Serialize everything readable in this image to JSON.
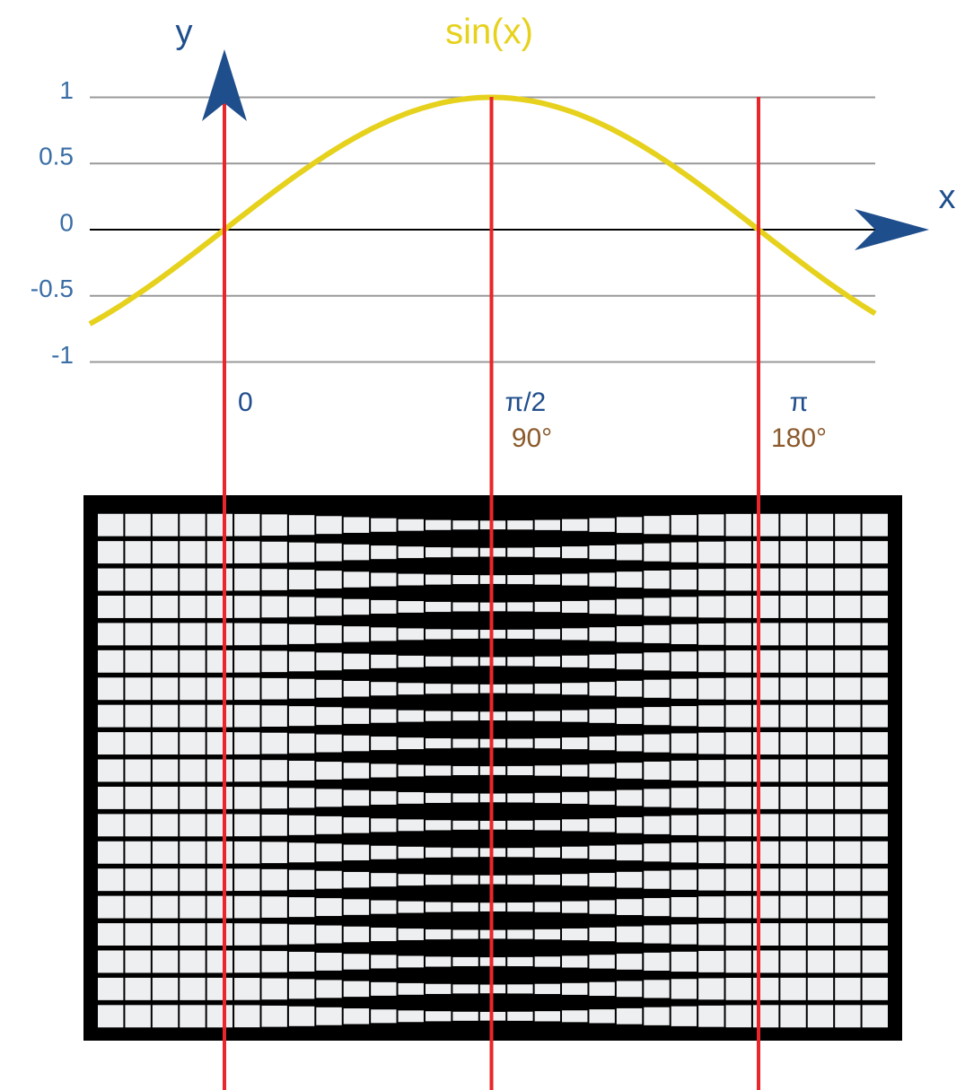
{
  "title": "sin(x)",
  "y_axis_label": "y",
  "x_axis_label": "x",
  "yticks": [
    1,
    0.5,
    0,
    -0.5,
    -1
  ],
  "x_markers": [
    {
      "radian": "0"
    },
    {
      "radian": "π/2",
      "degree": "90°"
    },
    {
      "radian": "π",
      "degree": "180°"
    }
  ]
}
